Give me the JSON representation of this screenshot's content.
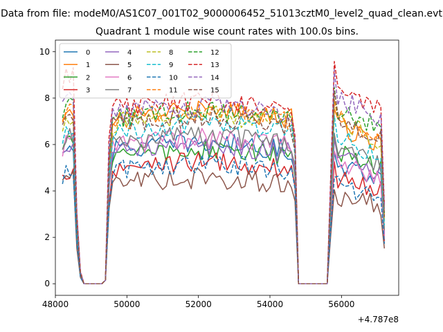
{
  "chart_data": {
    "type": "line",
    "suptitle": "Data from file: modeM0/AS1C07_001T02_9000006452_51013cztM0_level2_quad_clean.evt",
    "title": "Quadrant 1 module wise count rates with 100.0s bins.",
    "xlabel": "",
    "ylabel": "",
    "x_offset_label": "+4.787e8",
    "xlim": [
      48000,
      57600
    ],
    "ylim": [
      -0.5,
      10.5
    ],
    "xticks": [
      48000,
      50000,
      52000,
      54000,
      56000
    ],
    "yticks": [
      0,
      2,
      4,
      6,
      8,
      10
    ],
    "legend_position": "upper-left",
    "legend_columns": 4,
    "legend_labels": [
      "0",
      "1",
      "2",
      "3",
      "4",
      "5",
      "6",
      "7",
      "8",
      "9",
      "10",
      "11",
      "12",
      "13",
      "14",
      "15"
    ],
    "series": [
      {
        "name": "0",
        "color": "#1f77b4",
        "dash": "solid",
        "t1": 5.7,
        "t2": 5.2,
        "l1": 6.0
      },
      {
        "name": "1",
        "color": "#ff7f0e",
        "dash": "solid",
        "t1": 7.1,
        "t2": 6.8,
        "l1": 7.4
      },
      {
        "name": "2",
        "color": "#2ca02c",
        "dash": "solid",
        "t1": 5.4,
        "t2": 5.7,
        "l1": 6.1
      },
      {
        "name": "3",
        "color": "#d62728",
        "dash": "solid",
        "t1": 4.9,
        "t2": 4.6,
        "l1": 4.9
      },
      {
        "name": "4",
        "color": "#9467bd",
        "dash": "solid",
        "t1": 5.6,
        "t2": 5.4,
        "l1": 5.9
      },
      {
        "name": "5",
        "color": "#8c564b",
        "dash": "solid",
        "t1": 4.2,
        "t2": 3.8,
        "l1": 4.6
      },
      {
        "name": "6",
        "color": "#e377c2",
        "dash": "solid",
        "t1": 5.9,
        "t2": 5.2,
        "l1": 6.1
      },
      {
        "name": "7",
        "color": "#7f7f7f",
        "dash": "solid",
        "t1": 6.0,
        "t2": 5.8,
        "l1": 6.4
      },
      {
        "name": "8",
        "color": "#bcbd22",
        "dash": "dashed",
        "t1": 6.9,
        "t2": 7.0,
        "l1": 7.2
      },
      {
        "name": "9",
        "color": "#17becf",
        "dash": "dashed",
        "t1": 6.5,
        "t2": 6.3,
        "l1": 6.6
      },
      {
        "name": "10",
        "color": "#1f77b4",
        "dash": "dashed",
        "t1": 4.8,
        "t2": 4.3,
        "l1": 4.7
      },
      {
        "name": "11",
        "color": "#ff7f0e",
        "dash": "dashed",
        "t1": 7.0,
        "t2": 7.2,
        "l1": 7.6
      },
      {
        "name": "12",
        "color": "#2ca02c",
        "dash": "dashed",
        "t1": 7.1,
        "t2": 7.6,
        "l1": 7.7
      },
      {
        "name": "13",
        "color": "#d62728",
        "dash": "dashed",
        "t1": 7.5,
        "t2": 8.5,
        "l1": 9.0
      },
      {
        "name": "14",
        "color": "#9467bd",
        "dash": "dashed",
        "t1": 7.3,
        "t2": 8.1,
        "l1": 8.4
      },
      {
        "name": "15",
        "color": "#8c564b",
        "dash": "dashed",
        "t1": 6.8,
        "t2": 7.2,
        "l1": 7.3
      }
    ]
  }
}
